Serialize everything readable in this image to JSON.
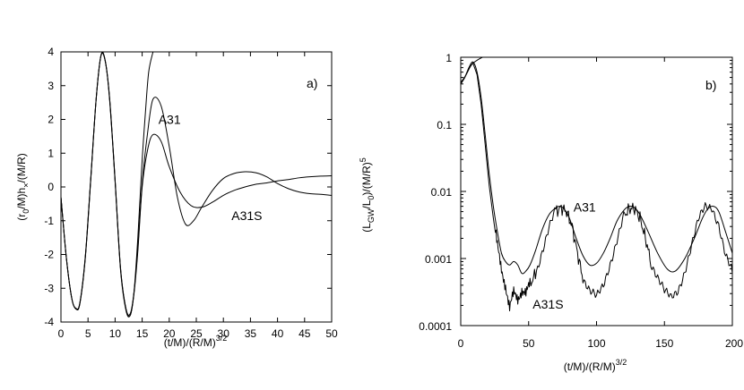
{
  "chart_data": [
    {
      "type": "line",
      "panel_label": "a)",
      "xlabel": "(t/M)/(R/M)",
      "xlabel_sup": "3/2",
      "ylabel": "(r",
      "ylabel_parts": [
        "(r",
        "0",
        "/M)h",
        "×",
        "/(M/R)"
      ],
      "xlim": [
        0,
        50
      ],
      "ylim": [
        -4,
        4
      ],
      "x_ticks": [
        0,
        5,
        10,
        15,
        20,
        25,
        30,
        35,
        40,
        45,
        50
      ],
      "y_ticks": [
        -4,
        -3,
        -2,
        -1,
        0,
        1,
        2,
        3,
        4
      ],
      "grid": false,
      "annotations": [
        {
          "text": "A31",
          "x": 18,
          "y": 2.0
        },
        {
          "text": "A31S",
          "x": 31.5,
          "y": -0.85
        }
      ],
      "series": [
        {
          "x": [
            0,
            1,
            2,
            2.8,
            3.5,
            4.5,
            5.5,
            6.5,
            7.4,
            8.2,
            9,
            10,
            11,
            12,
            12.8,
            13.5,
            14.2,
            15,
            16,
            17,
            18.5,
            20,
            21.5,
            23,
            24.5,
            26,
            28,
            30,
            32,
            34,
            36,
            38,
            40,
            42,
            44,
            46,
            48,
            50
          ],
          "values": [
            -0.3,
            -2.1,
            -3.3,
            -3.62,
            -3.45,
            -2.1,
            0.2,
            2.6,
            3.88,
            3.7,
            2.6,
            0.2,
            -2.4,
            -3.6,
            -3.75,
            -3.1,
            -1.8,
            0.1,
            1.6,
            2.6,
            2.4,
            1.2,
            -0.3,
            -1.1,
            -1.0,
            -0.6,
            -0.1,
            0.25,
            0.4,
            0.45,
            0.42,
            0.3,
            0.1,
            -0.05,
            -0.15,
            -0.2,
            -0.22,
            -0.25
          ]
        },
        {
          "x": [
            0,
            1,
            2,
            2.8,
            3.5,
            4.5,
            5.5,
            6.5,
            7.4,
            8.2,
            9,
            10,
            11,
            12,
            12.8,
            13.5,
            14.2,
            15,
            16,
            17,
            18.5,
            20,
            22,
            24,
            26,
            28,
            30,
            32,
            34,
            36,
            38,
            40,
            42,
            44,
            46,
            48,
            50
          ],
          "values": [
            -0.3,
            -2.1,
            -3.3,
            -3.6,
            -3.42,
            -2.05,
            0.25,
            2.6,
            3.9,
            3.72,
            2.55,
            0.15,
            -2.45,
            -3.65,
            -3.8,
            -3.15,
            -1.9,
            0.0,
            1.1,
            1.55,
            1.35,
            0.6,
            -0.15,
            -0.55,
            -0.6,
            -0.45,
            -0.25,
            -0.1,
            0.0,
            0.08,
            0.12,
            0.18,
            0.22,
            0.27,
            0.3,
            0.32,
            0.33
          ]
        },
        {
          "x": [
            0,
            1,
            2,
            2.8,
            3.5,
            4.5,
            5.5,
            6.5,
            7.4,
            8.2,
            9,
            10,
            11,
            12,
            12.8,
            13.5,
            14.2,
            15,
            15.6,
            16.2,
            17
          ],
          "values": [
            -0.3,
            -2.1,
            -3.3,
            -3.6,
            -3.44,
            -2.08,
            0.22,
            2.6,
            3.9,
            3.72,
            2.6,
            0.2,
            -2.4,
            -3.6,
            -3.8,
            -3.1,
            -1.5,
            0.8,
            2.2,
            3.4,
            4.0
          ]
        }
      ]
    },
    {
      "type": "line",
      "panel_label": "b)",
      "xlabel": "(t/M)/(R/M)",
      "xlabel_sup": "3/2",
      "ylabel": "(L",
      "ylabel_parts": [
        "(L",
        "GW",
        "/L",
        "0",
        ")/(M/R)",
        "5"
      ],
      "xlim": [
        0,
        200
      ],
      "ylim": [
        0.0001,
        1
      ],
      "y_scale": "log",
      "x_ticks": [
        0,
        50,
        100,
        150,
        200
      ],
      "y_ticks": [
        0.0001,
        0.001,
        0.01,
        0.1,
        1
      ],
      "y_tick_labels": [
        "0.0001",
        "0.001",
        "0.01",
        "0.1",
        "1"
      ],
      "grid": false,
      "annotations": [
        {
          "text": "A31",
          "x": 83,
          "y": 0.0058
        },
        {
          "text": "A31S",
          "x": 53,
          "y": 0.00021
        }
      ],
      "series": [
        {
          "x": [
            0,
            3,
            6,
            9,
            12,
            15,
            18,
            21,
            24,
            27,
            30,
            33,
            36,
            39,
            42,
            45,
            48,
            51,
            55,
            60,
            65,
            70,
            73,
            76,
            80,
            85,
            90,
            95,
            100,
            105,
            110,
            115,
            120,
            124,
            128,
            132,
            138,
            145,
            152,
            158,
            165,
            172,
            178,
            182,
            186,
            190,
            195,
            200
          ],
          "values": [
            0.4,
            0.5,
            0.7,
            0.85,
            0.6,
            0.25,
            0.07,
            0.018,
            0.006,
            0.0025,
            0.0012,
            0.0009,
            0.0008,
            0.0009,
            0.0008,
            0.0006,
            0.00065,
            0.0008,
            0.0013,
            0.0027,
            0.0045,
            0.0057,
            0.006,
            0.0055,
            0.004,
            0.002,
            0.0011,
            0.0008,
            0.00085,
            0.0012,
            0.002,
            0.0036,
            0.0052,
            0.006,
            0.0057,
            0.0045,
            0.0025,
            0.0012,
            0.0007,
            0.00065,
            0.001,
            0.002,
            0.004,
            0.0055,
            0.006,
            0.005,
            0.0025,
            0.0012
          ]
        },
        {
          "x": [
            0,
            3,
            6,
            9,
            12,
            15,
            18,
            21,
            24,
            27,
            30,
            33,
            36,
            39,
            42,
            45,
            48,
            51,
            55,
            60,
            65,
            70,
            74,
            78,
            82,
            86,
            90,
            95,
            100,
            105,
            110,
            115,
            120,
            124,
            128,
            132,
            136,
            140,
            145,
            150,
            155,
            160,
            165,
            170,
            175,
            180,
            185,
            190,
            195,
            200
          ],
          "values": [
            0.4,
            0.5,
            0.68,
            0.82,
            0.55,
            0.2,
            0.05,
            0.012,
            0.004,
            0.0015,
            0.0007,
            0.0004,
            0.00018,
            0.0003,
            0.00025,
            0.00035,
            0.0003,
            0.0004,
            0.0006,
            0.0014,
            0.003,
            0.005,
            0.0057,
            0.005,
            0.003,
            0.0012,
            0.0005,
            0.0003,
            0.00025,
            0.0004,
            0.0009,
            0.002,
            0.0042,
            0.0055,
            0.0056,
            0.004,
            0.002,
            0.0009,
            0.0005,
            0.0003,
            0.00025,
            0.00035,
            0.0007,
            0.0016,
            0.0035,
            0.0055,
            0.0058,
            0.0035,
            0.0012,
            0.0006
          ]
        },
        {
          "x": [
            0,
            4,
            8,
            12,
            16,
            20
          ],
          "values": [
            0.42,
            0.55,
            0.78,
            0.9,
            1.0,
            1.1
          ]
        }
      ]
    }
  ]
}
